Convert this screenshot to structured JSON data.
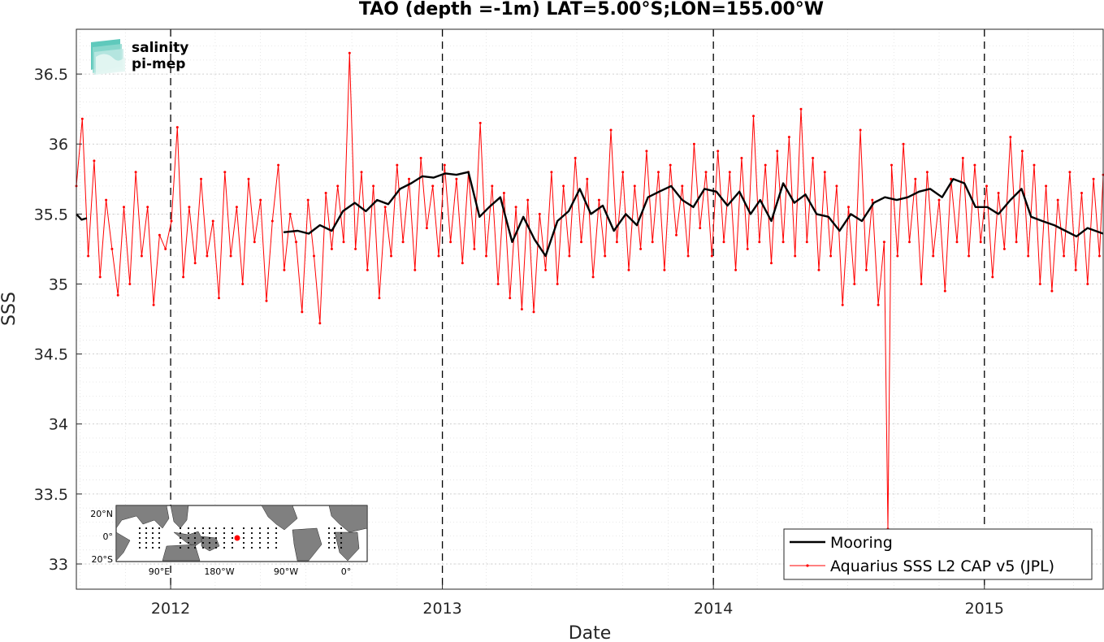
{
  "chart_data": {
    "type": "line",
    "title": "TAO (depth =-1m) LAT=5.00°S;LON=155.00°W",
    "xlabel": "Date",
    "ylabel": "SSS",
    "xlim": [
      "2011-08-27",
      "2015-06-10"
    ],
    "ylim": [
      32.82,
      36.82
    ],
    "x_ticks": [
      "2012",
      "2013",
      "2014",
      "2015"
    ],
    "x_tick_dates": [
      "2012-01-01",
      "2013-01-01",
      "2014-01-01",
      "2015-01-01"
    ],
    "y_ticks": [
      "33",
      "33.5",
      "34",
      "34.5",
      "35",
      "35.5",
      "36",
      "36.5"
    ],
    "y_tick_values": [
      33,
      33.5,
      34,
      34.5,
      35,
      35.5,
      36,
      36.5
    ],
    "grid": "major and minor, dotted",
    "vertical_dashed_lines": [
      "2012-01-01",
      "2013-01-01",
      "2014-01-01",
      "2015-01-01"
    ],
    "legend_position": "bottom-right",
    "series": [
      {
        "name": "Mooring",
        "color": "#000000",
        "style": "thick line",
        "segments": [
          [
            [
              "2011-08-27",
              35.5
            ],
            [
              "2011-09-03",
              35.46
            ],
            [
              "2011-09-10",
              35.47
            ]
          ],
          [
            [
              "2012-06-01",
              35.37
            ],
            [
              "2012-06-20",
              35.38
            ],
            [
              "2012-07-05",
              35.36
            ],
            [
              "2012-07-20",
              35.42
            ],
            [
              "2012-08-05",
              35.38
            ],
            [
              "2012-08-20",
              35.52
            ],
            [
              "2012-09-05",
              35.58
            ],
            [
              "2012-09-20",
              35.52
            ],
            [
              "2012-10-05",
              35.6
            ],
            [
              "2012-10-20",
              35.57
            ],
            [
              "2012-11-05",
              35.68
            ],
            [
              "2012-11-20",
              35.72
            ],
            [
              "2012-12-05",
              35.77
            ],
            [
              "2012-12-20",
              35.76
            ],
            [
              "2013-01-05",
              35.79
            ],
            [
              "2013-01-20",
              35.78
            ],
            [
              "2013-02-05",
              35.8
            ],
            [
              "2013-02-20",
              35.48
            ],
            [
              "2013-03-05",
              35.55
            ],
            [
              "2013-03-20",
              35.62
            ],
            [
              "2013-04-05",
              35.3
            ],
            [
              "2013-04-20",
              35.48
            ],
            [
              "2013-05-05",
              35.32
            ],
            [
              "2013-05-20",
              35.2
            ],
            [
              "2013-06-05",
              35.45
            ],
            [
              "2013-06-20",
              35.52
            ],
            [
              "2013-07-05",
              35.68
            ],
            [
              "2013-07-20",
              35.5
            ],
            [
              "2013-08-05",
              35.56
            ],
            [
              "2013-08-20",
              35.38
            ],
            [
              "2013-09-05",
              35.5
            ],
            [
              "2013-09-20",
              35.42
            ],
            [
              "2013-10-05",
              35.62
            ],
            [
              "2013-10-20",
              35.66
            ],
            [
              "2013-11-05",
              35.7
            ],
            [
              "2013-11-20",
              35.6
            ],
            [
              "2013-12-05",
              35.55
            ],
            [
              "2013-12-20",
              35.68
            ],
            [
              "2014-01-05",
              35.66
            ],
            [
              "2014-01-20",
              35.56
            ],
            [
              "2014-02-05",
              35.66
            ],
            [
              "2014-02-20",
              35.5
            ],
            [
              "2014-03-05",
              35.6
            ],
            [
              "2014-03-20",
              35.45
            ],
            [
              "2014-04-05",
              35.72
            ],
            [
              "2014-04-20",
              35.58
            ],
            [
              "2014-05-05",
              35.64
            ],
            [
              "2014-05-20",
              35.5
            ],
            [
              "2014-06-05",
              35.48
            ],
            [
              "2014-06-20",
              35.38
            ],
            [
              "2014-07-05",
              35.5
            ],
            [
              "2014-07-20",
              35.45
            ],
            [
              "2014-08-05",
              35.58
            ],
            [
              "2014-08-20",
              35.62
            ],
            [
              "2014-09-05",
              35.6
            ],
            [
              "2014-09-20",
              35.62
            ],
            [
              "2014-10-05",
              35.66
            ],
            [
              "2014-10-20",
              35.68
            ],
            [
              "2014-11-05",
              35.62
            ],
            [
              "2014-11-20",
              35.75
            ],
            [
              "2014-12-05",
              35.72
            ],
            [
              "2014-12-20",
              35.55
            ],
            [
              "2015-01-05",
              35.55
            ],
            [
              "2015-01-20",
              35.5
            ],
            [
              "2015-02-05",
              35.6
            ],
            [
              "2015-02-20",
              35.68
            ],
            [
              "2015-03-05",
              35.48
            ],
            [
              "2015-03-20",
              35.45
            ],
            [
              "2015-04-05",
              35.42
            ],
            [
              "2015-04-20",
              35.38
            ],
            [
              "2015-05-05",
              35.34
            ],
            [
              "2015-05-20",
              35.4
            ],
            [
              "2015-06-10",
              35.36
            ]
          ]
        ]
      },
      {
        "name": "Aquarius SSS L2 CAP v5 (JPL)",
        "color": "#ff0000",
        "style": "thin line with dot markers",
        "points": [
          [
            "2011-08-27",
            35.7
          ],
          [
            "2011-09-04",
            36.18
          ],
          [
            "2011-09-12",
            35.2
          ],
          [
            "2011-09-20",
            35.88
          ],
          [
            "2011-09-28",
            35.05
          ],
          [
            "2011-10-06",
            35.6
          ],
          [
            "2011-10-14",
            35.25
          ],
          [
            "2011-10-22",
            34.92
          ],
          [
            "2011-10-30",
            35.55
          ],
          [
            "2011-11-07",
            35.0
          ],
          [
            "2011-11-15",
            35.8
          ],
          [
            "2011-11-23",
            35.2
          ],
          [
            "2011-12-01",
            35.55
          ],
          [
            "2011-12-09",
            34.85
          ],
          [
            "2011-12-17",
            35.35
          ],
          [
            "2011-12-25",
            35.25
          ],
          [
            "2012-01-02",
            35.45
          ],
          [
            "2012-01-10",
            36.12
          ],
          [
            "2012-01-18",
            35.05
          ],
          [
            "2012-01-26",
            35.55
          ],
          [
            "2012-02-03",
            35.15
          ],
          [
            "2012-02-11",
            35.75
          ],
          [
            "2012-02-19",
            35.2
          ],
          [
            "2012-02-27",
            35.45
          ],
          [
            "2012-03-06",
            34.9
          ],
          [
            "2012-03-14",
            35.8
          ],
          [
            "2012-03-22",
            35.2
          ],
          [
            "2012-03-30",
            35.55
          ],
          [
            "2012-04-07",
            35.0
          ],
          [
            "2012-04-15",
            35.75
          ],
          [
            "2012-04-23",
            35.3
          ],
          [
            "2012-05-01",
            35.6
          ],
          [
            "2012-05-09",
            34.88
          ],
          [
            "2012-05-17",
            35.45
          ],
          [
            "2012-05-25",
            35.85
          ],
          [
            "2012-06-02",
            35.1
          ],
          [
            "2012-06-10",
            35.5
          ],
          [
            "2012-06-18",
            35.3
          ],
          [
            "2012-06-26",
            34.8
          ],
          [
            "2012-07-04",
            35.6
          ],
          [
            "2012-07-12",
            35.2
          ],
          [
            "2012-07-20",
            34.72
          ],
          [
            "2012-07-28",
            35.65
          ],
          [
            "2012-08-05",
            35.25
          ],
          [
            "2012-08-13",
            35.7
          ],
          [
            "2012-08-21",
            35.3
          ],
          [
            "2012-08-29",
            36.65
          ],
          [
            "2012-09-06",
            35.25
          ],
          [
            "2012-09-14",
            35.8
          ],
          [
            "2012-09-22",
            35.1
          ],
          [
            "2012-09-30",
            35.7
          ],
          [
            "2012-10-08",
            34.9
          ],
          [
            "2012-10-16",
            35.55
          ],
          [
            "2012-10-24",
            35.2
          ],
          [
            "2012-11-01",
            35.85
          ],
          [
            "2012-11-09",
            35.3
          ],
          [
            "2012-11-17",
            35.75
          ],
          [
            "2012-11-25",
            35.1
          ],
          [
            "2012-12-03",
            35.9
          ],
          [
            "2012-12-11",
            35.4
          ],
          [
            "2012-12-19",
            35.7
          ],
          [
            "2012-12-27",
            35.2
          ],
          [
            "2013-01-04",
            35.85
          ],
          [
            "2013-01-12",
            35.3
          ],
          [
            "2013-01-20",
            35.75
          ],
          [
            "2013-01-28",
            35.15
          ],
          [
            "2013-02-05",
            35.8
          ],
          [
            "2013-02-13",
            35.25
          ],
          [
            "2013-02-21",
            36.15
          ],
          [
            "2013-03-01",
            35.2
          ],
          [
            "2013-03-09",
            35.7
          ],
          [
            "2013-03-17",
            35.0
          ],
          [
            "2013-03-25",
            35.65
          ],
          [
            "2013-04-02",
            34.9
          ],
          [
            "2013-04-10",
            35.55
          ],
          [
            "2013-04-18",
            34.82
          ],
          [
            "2013-04-26",
            35.6
          ],
          [
            "2013-05-04",
            34.8
          ],
          [
            "2013-05-12",
            35.5
          ],
          [
            "2013-05-20",
            35.1
          ],
          [
            "2013-05-28",
            35.8
          ],
          [
            "2013-06-05",
            35.0
          ],
          [
            "2013-06-13",
            35.7
          ],
          [
            "2013-06-21",
            35.2
          ],
          [
            "2013-06-29",
            35.9
          ],
          [
            "2013-07-07",
            35.3
          ],
          [
            "2013-07-15",
            35.75
          ],
          [
            "2013-07-23",
            35.05
          ],
          [
            "2013-07-31",
            35.6
          ],
          [
            "2013-08-08",
            35.2
          ],
          [
            "2013-08-16",
            36.1
          ],
          [
            "2013-08-24",
            35.3
          ],
          [
            "2013-09-01",
            35.8
          ],
          [
            "2013-09-09",
            35.1
          ],
          [
            "2013-09-17",
            35.7
          ],
          [
            "2013-09-25",
            35.25
          ],
          [
            "2013-10-03",
            35.95
          ],
          [
            "2013-10-11",
            35.3
          ],
          [
            "2013-10-19",
            35.8
          ],
          [
            "2013-10-27",
            35.1
          ],
          [
            "2013-11-04",
            35.85
          ],
          [
            "2013-11-12",
            35.35
          ],
          [
            "2013-11-20",
            35.7
          ],
          [
            "2013-11-28",
            35.2
          ],
          [
            "2013-12-06",
            36.0
          ],
          [
            "2013-12-14",
            35.4
          ],
          [
            "2013-12-22",
            35.8
          ],
          [
            "2013-12-30",
            35.2
          ],
          [
            "2014-01-07",
            35.95
          ],
          [
            "2014-01-15",
            35.3
          ],
          [
            "2014-01-23",
            35.8
          ],
          [
            "2014-01-31",
            35.1
          ],
          [
            "2014-02-08",
            35.9
          ],
          [
            "2014-02-16",
            35.25
          ],
          [
            "2014-02-24",
            36.2
          ],
          [
            "2014-03-04",
            35.3
          ],
          [
            "2014-03-12",
            35.85
          ],
          [
            "2014-03-20",
            35.15
          ],
          [
            "2014-03-28",
            35.95
          ],
          [
            "2014-04-05",
            35.3
          ],
          [
            "2014-04-13",
            36.05
          ],
          [
            "2014-04-21",
            35.2
          ],
          [
            "2014-04-29",
            36.25
          ],
          [
            "2014-05-07",
            35.3
          ],
          [
            "2014-05-15",
            35.9
          ],
          [
            "2014-05-23",
            35.1
          ],
          [
            "2014-05-31",
            35.8
          ],
          [
            "2014-06-08",
            35.2
          ],
          [
            "2014-06-16",
            35.7
          ],
          [
            "2014-06-24",
            34.85
          ],
          [
            "2014-07-02",
            35.55
          ],
          [
            "2014-07-10",
            35.0
          ],
          [
            "2014-07-18",
            36.1
          ],
          [
            "2014-07-26",
            35.1
          ],
          [
            "2014-08-03",
            35.6
          ],
          [
            "2014-08-11",
            34.85
          ],
          [
            "2014-08-19",
            35.3
          ],
          [
            "2014-08-24",
            33.25
          ],
          [
            "2014-08-29",
            35.85
          ],
          [
            "2014-09-06",
            35.2
          ],
          [
            "2014-09-14",
            36.0
          ],
          [
            "2014-09-22",
            35.3
          ],
          [
            "2014-09-30",
            35.75
          ],
          [
            "2014-10-08",
            35.0
          ],
          [
            "2014-10-16",
            35.8
          ],
          [
            "2014-10-24",
            35.2
          ],
          [
            "2014-11-01",
            35.6
          ],
          [
            "2014-11-09",
            34.95
          ],
          [
            "2014-11-17",
            35.75
          ],
          [
            "2014-11-25",
            35.3
          ],
          [
            "2014-12-03",
            35.9
          ],
          [
            "2014-12-11",
            35.2
          ],
          [
            "2014-12-19",
            35.85
          ],
          [
            "2014-12-27",
            35.3
          ],
          [
            "2015-01-04",
            35.7
          ],
          [
            "2015-01-12",
            35.05
          ],
          [
            "2015-01-20",
            35.65
          ],
          [
            "2015-01-28",
            35.25
          ],
          [
            "2015-02-05",
            36.05
          ],
          [
            "2015-02-13",
            35.3
          ],
          [
            "2015-02-21",
            35.95
          ],
          [
            "2015-03-01",
            35.2
          ],
          [
            "2015-03-09",
            35.85
          ],
          [
            "2015-03-17",
            35.0
          ],
          [
            "2015-03-25",
            35.7
          ],
          [
            "2015-04-02",
            34.95
          ],
          [
            "2015-04-10",
            35.6
          ],
          [
            "2015-04-18",
            35.2
          ],
          [
            "2015-04-26",
            35.8
          ],
          [
            "2015-05-04",
            35.1
          ],
          [
            "2015-05-12",
            35.65
          ],
          [
            "2015-05-20",
            35.0
          ],
          [
            "2015-05-28",
            35.75
          ],
          [
            "2015-06-05",
            35.2
          ],
          [
            "2015-06-10",
            35.78
          ]
        ]
      }
    ]
  },
  "legend": {
    "items": [
      {
        "label": "Mooring",
        "color": "#000000"
      },
      {
        "label": "Aquarius SSS L2 CAP v5 (JPL)",
        "color": "#ff0000"
      }
    ]
  },
  "logo": {
    "line1": "salinity",
    "line2": "pi-mep",
    "color1": "#1aa89a",
    "color2": "#0d5c57"
  },
  "inset_map": {
    "lat_labels": [
      "20°N",
      "0°",
      "20°S"
    ],
    "lon_labels": [
      "90°E",
      "180°W",
      "90°W",
      "0°"
    ],
    "land_color": "#808080",
    "ocean_color": "#ffffff",
    "marker_color": "#ff0000"
  }
}
